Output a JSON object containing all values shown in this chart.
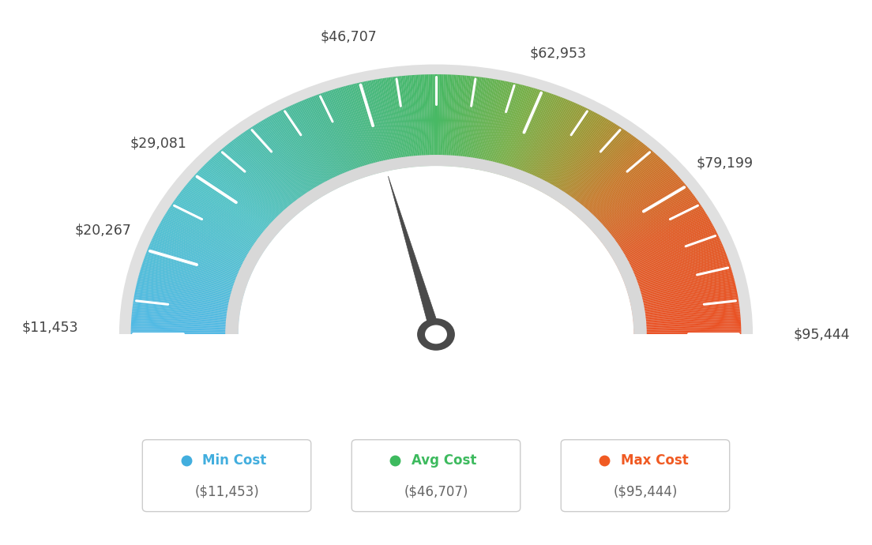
{
  "min_value": 11453,
  "max_value": 95444,
  "avg_value": 46707,
  "labels": [
    "$11,453",
    "$20,267",
    "$29,081",
    "$46,707",
    "$62,953",
    "$79,199",
    "$95,444"
  ],
  "label_values": [
    11453,
    20267,
    29081,
    46707,
    62953,
    79199,
    95444
  ],
  "legend_min_label": "Min Cost",
  "legend_avg_label": "Avg Cost",
  "legend_max_label": "Max Cost",
  "legend_min_value": "($11,453)",
  "legend_avg_value": "($46,707)",
  "legend_max_value": "($95,444)",
  "color_min": "#42aede",
  "color_avg": "#3dba5e",
  "color_max": "#f05a22",
  "background_color": "#ffffff",
  "needle_value": 46707,
  "color_stops": [
    [
      0.0,
      [
        80,
        185,
        230
      ]
    ],
    [
      0.2,
      [
        80,
        195,
        200
      ]
    ],
    [
      0.37,
      [
        72,
        185,
        145
      ]
    ],
    [
      0.5,
      [
        72,
        185,
        100
      ]
    ],
    [
      0.6,
      [
        120,
        175,
        70
      ]
    ],
    [
      0.68,
      [
        160,
        150,
        50
      ]
    ],
    [
      0.75,
      [
        200,
        120,
        40
      ]
    ],
    [
      0.85,
      [
        225,
        90,
        35
      ]
    ],
    [
      1.0,
      [
        235,
        80,
        35
      ]
    ]
  ]
}
